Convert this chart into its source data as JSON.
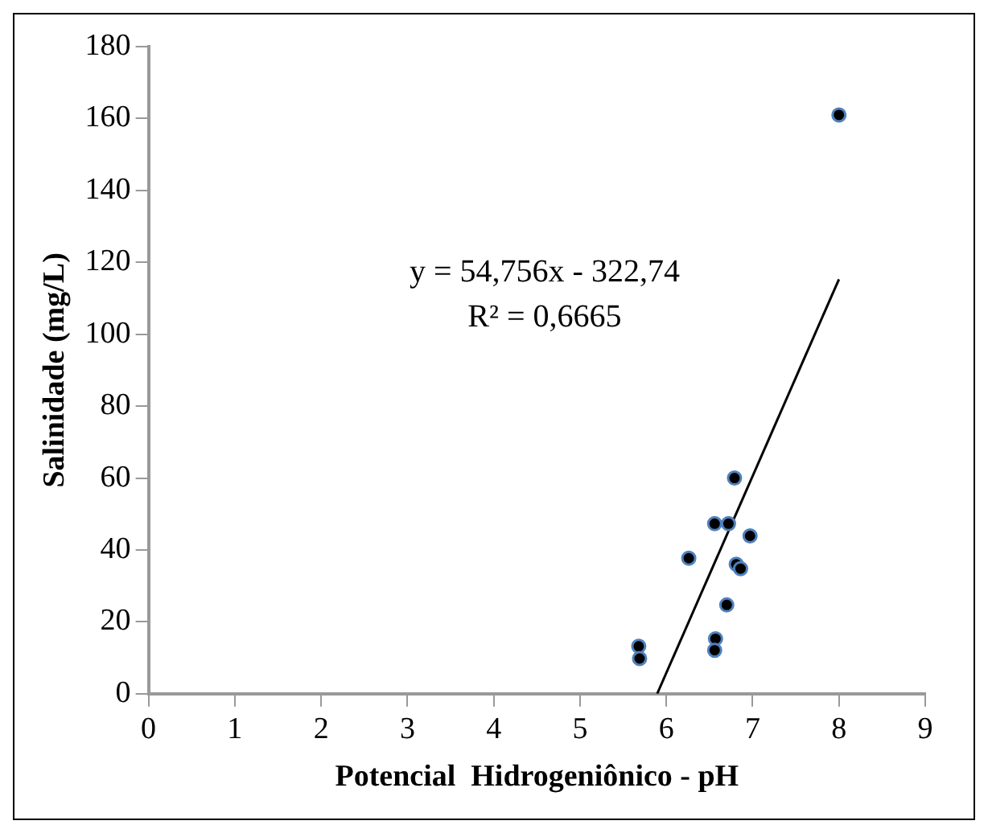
{
  "chart_data": {
    "type": "scatter",
    "xlabel": "Potencial  Hidrogeniônico - pH",
    "ylabel": "Salinidade (mg/L)",
    "x": [
      6.79,
      6.56,
      6.72,
      6.97,
      6.26,
      6.81,
      6.86,
      6.7,
      6.57,
      6.56,
      5.68,
      5.69,
      8.0
    ],
    "series": [
      {
        "color": "#000000",
        "marker": "circle",
        "values": [
          60,
          47.3,
          47.3,
          43.9,
          37.7,
          36,
          34.8,
          24.7,
          15.3,
          12.1,
          13.2,
          9.8,
          161
        ]
      },
      {
        "type": "line",
        "marker": "none",
        "color": "#000000",
        "x": [
          5.894,
          8
        ],
        "values": [
          0,
          115.3
        ]
      }
    ],
    "xlim": [
      0,
      9
    ],
    "xticks": [
      0,
      1,
      2,
      3,
      4,
      5,
      6,
      7,
      8,
      9
    ],
    "ylim": [
      0,
      180
    ],
    "yticks": [
      0,
      20,
      40,
      60,
      80,
      100,
      120,
      140,
      160,
      180
    ],
    "legend": false,
    "grid": false,
    "annotations": [
      "y = 54,756x - 322,74",
      "R² = 0,6665"
    ]
  }
}
